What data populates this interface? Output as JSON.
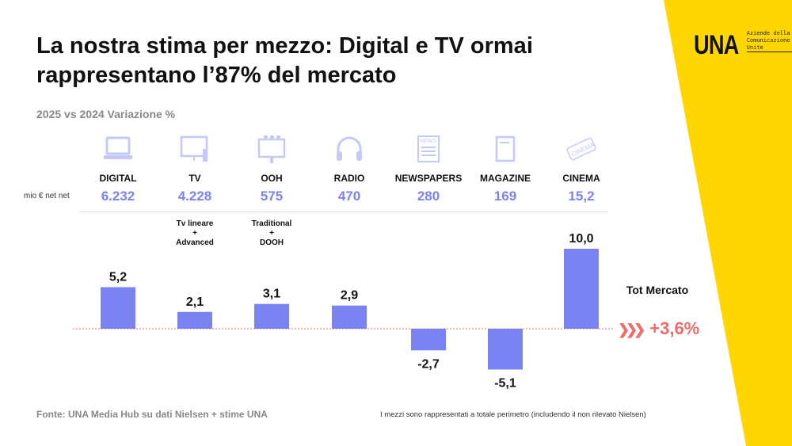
{
  "title": "La nostra stima per mezzo: Digital e TV ormai rappresentano l’87% del mercato",
  "subtitle": "2025 vs 2024 Variazione %",
  "logo": {
    "mark": "UNA",
    "text": "Aziende della Comunicazione Unite"
  },
  "unit_label": "mio € net net",
  "media": [
    {
      "label": "DIGITAL",
      "amount": "6.232",
      "icon": "laptop-icon",
      "note": ""
    },
    {
      "label": "TV",
      "amount": "4.228",
      "icon": "tv-icon",
      "note": "Tv lineare\n+\nAdvanced"
    },
    {
      "label": "OOH",
      "amount": "575",
      "icon": "billboard-icon",
      "note": "Traditional\n+\nDOOH"
    },
    {
      "label": "RADIO",
      "amount": "470",
      "icon": "headphones-icon",
      "note": ""
    },
    {
      "label": "NEWSPAPERS",
      "amount": "280",
      "icon": "newspaper-icon",
      "note": ""
    },
    {
      "label": "MAGAZINE",
      "amount": "169",
      "icon": "magazine-icon",
      "note": ""
    },
    {
      "label": "CINEMA",
      "amount": "15,2",
      "icon": "cinema-ticket-icon",
      "note": ""
    }
  ],
  "total": {
    "label": "Tot Mercato",
    "value": "+3,6%"
  },
  "source": "Fonte: UNA Media Hub su dati Nielsen + stime UNA",
  "footnote": "I mezzi sono rappresentati a totale perimetro (includendo il non rilevato Nielsen)",
  "colors": {
    "bar": "#7b83f2",
    "accent": "#f26b6b",
    "yellow": "#ffd600"
  },
  "chart_data": {
    "type": "bar",
    "title": "2025 vs 2024 Variazione %",
    "categories": [
      "DIGITAL",
      "TV",
      "OOH",
      "RADIO",
      "NEWSPAPERS",
      "MAGAZINE",
      "CINEMA"
    ],
    "values": [
      5.2,
      2.1,
      3.1,
      2.9,
      -2.7,
      -5.1,
      10.0
    ],
    "value_labels": [
      "5,2",
      "2,1",
      "3,1",
      "2,9",
      "-2,7",
      "-5,1",
      "10,0"
    ],
    "ylim": [
      -6,
      11
    ],
    "grid": false
  }
}
